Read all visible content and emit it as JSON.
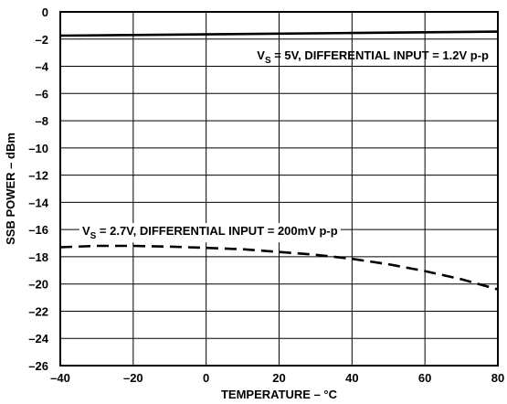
{
  "chart_data": {
    "type": "line",
    "xlabel": "TEMPERATURE – °C",
    "ylabel": "SSB POWER – dBm",
    "xlim": [
      -40,
      80
    ],
    "ylim": [
      -26,
      0
    ],
    "x_ticks": [
      -40,
      -20,
      0,
      20,
      40,
      60,
      80
    ],
    "y_ticks": [
      0,
      -2,
      -4,
      -6,
      -8,
      -10,
      -12,
      -14,
      -16,
      -18,
      -20,
      -22,
      -24,
      -26
    ],
    "x_tick_labels": [
      "–40",
      "–20",
      "0",
      "20",
      "40",
      "60",
      "80"
    ],
    "y_tick_labels": [
      "0",
      "–2",
      "–4",
      "–6",
      "–8",
      "–10",
      "–12",
      "–14",
      "–16",
      "–18",
      "–20",
      "–22",
      "–24",
      "–26"
    ],
    "grid": true,
    "series": [
      {
        "label_main": "V",
        "label_sub": "S",
        "label_rest": " = 5V, DIFFERENTIAL INPUT = 1.2V p-p",
        "style": "solid",
        "x": [
          -40,
          -20,
          0,
          20,
          40,
          60,
          80
        ],
        "y": [
          -1.75,
          -1.7,
          -1.65,
          -1.6,
          -1.55,
          -1.5,
          -1.45
        ]
      },
      {
        "label_main": "V",
        "label_sub": "S",
        "label_rest": " = 2.7V, DIFFERENTIAL INPUT = 200mV p-p",
        "style": "dashed",
        "x": [
          -40,
          -30,
          -20,
          -10,
          0,
          10,
          20,
          30,
          40,
          50,
          60,
          70,
          80
        ],
        "y": [
          -17.3,
          -17.2,
          -17.2,
          -17.25,
          -17.35,
          -17.45,
          -17.65,
          -17.85,
          -18.15,
          -18.55,
          -19.05,
          -19.65,
          -20.4
        ]
      }
    ]
  }
}
